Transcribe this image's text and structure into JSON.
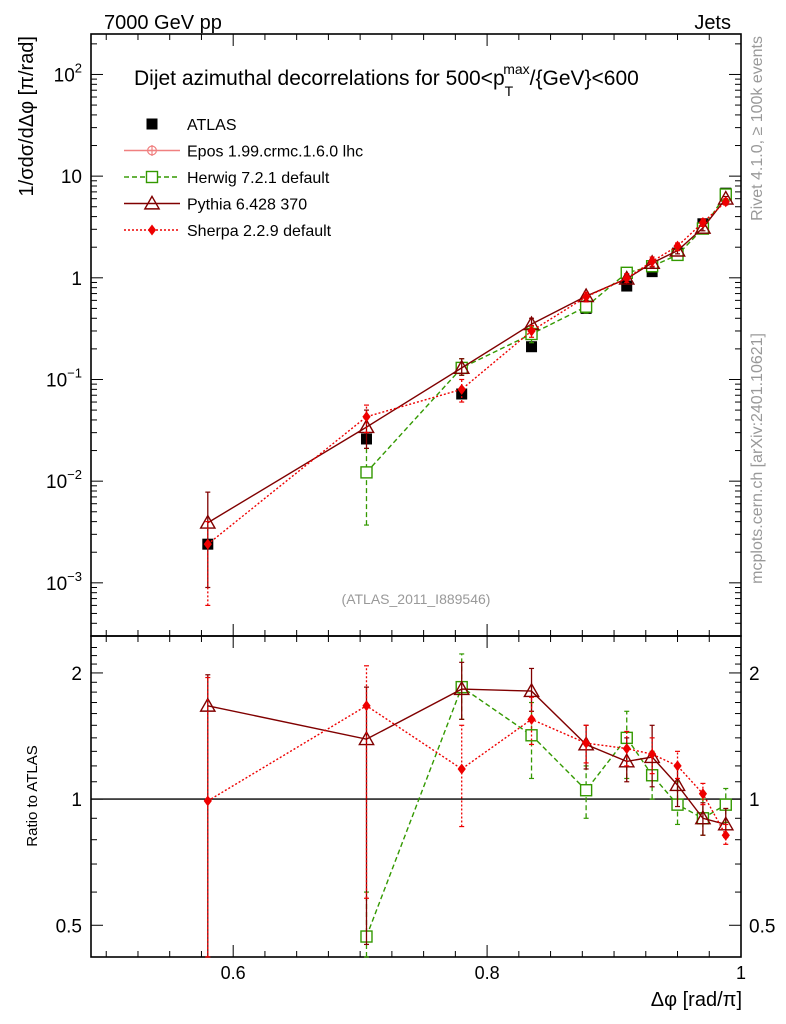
{
  "header": {
    "left": "7000 GeV pp",
    "right": "Jets"
  },
  "side_labels": {
    "rivet": "Rivet 4.1.0, ≥ 100k events",
    "mcplots": "mcplots.cern.ch [arXiv:2401.10621]"
  },
  "analysis_id": "(ATLAS_2011_I889546)",
  "chart_data": {
    "type": "scatter",
    "title": "Dijet azimuthal decorrelations for 500<p_T^max/{GeV}<600",
    "title_main": "Dijet azimuthal decorrelations for 500<p",
    "title_sub": "T",
    "title_sup": "max",
    "title_tail": "/{GeV}<600",
    "xlabel": "Δφ [rad/π]",
    "ylabel": "1/σdσ/dΔφ [π/rad]",
    "ratio_ylabel": "Ratio to ATLAS",
    "xlim": [
      0.488,
      1.0
    ],
    "ylim": [
      0.0003,
      250
    ],
    "ratio_ylim": [
      0.42,
      2.45
    ],
    "yscale": "log",
    "x_ticks": [
      0.6,
      0.8,
      1.0
    ],
    "x_tick_labels": [
      "0.6",
      "0.8",
      "1"
    ],
    "y_ticks": [
      0.001,
      0.01,
      0.1,
      1,
      10,
      100
    ],
    "y_tick_labels": [
      {
        "base": "10",
        "exp": "−3"
      },
      {
        "base": "10",
        "exp": "−2"
      },
      {
        "base": "10",
        "exp": "−1"
      },
      {
        "base": "1",
        "exp": ""
      },
      {
        "base": "10",
        "exp": ""
      },
      {
        "base": "10",
        "exp": "2"
      }
    ],
    "ratio_ticks": [
      0.5,
      1,
      2
    ],
    "ratio_tick_labels": [
      "0.5",
      "1",
      "2"
    ],
    "legend_position": "top-left",
    "x": [
      0.58,
      0.705,
      0.78,
      0.835,
      0.878,
      0.91,
      0.93,
      0.95,
      0.97,
      0.988
    ],
    "series": [
      {
        "name": "ATLAS",
        "color": "#000000",
        "marker": "square-filled",
        "line": "none",
        "values": [
          0.0024,
          0.026,
          0.072,
          0.21,
          0.5,
          0.83,
          1.15,
          1.75,
          3.4,
          6.8
        ]
      },
      {
        "name": "Epos 1.99.crmc.1.6.0 lhc",
        "color": "#f08080",
        "marker": "cross",
        "line": "solid",
        "values": [],
        "ratio": []
      },
      {
        "name": "Herwig 7.2.1 default",
        "color": "#339900",
        "marker": "square-open",
        "line": "dashed",
        "values": [
          null,
          0.0122,
          0.13,
          0.28,
          0.52,
          1.12,
          1.3,
          1.68,
          3.05,
          6.6
        ],
        "errors": [
          null,
          [
            0.0037,
            0.021
          ],
          [
            0.11,
            0.16
          ],
          [
            0.23,
            0.33
          ],
          [
            0.45,
            0.59
          ],
          [
            1.0,
            1.25
          ],
          [
            1.18,
            1.42
          ],
          [
            1.55,
            1.82
          ],
          [
            2.85,
            3.3
          ],
          [
            6.2,
            7.0
          ]
        ],
        "ratio": [
          null,
          0.47,
          1.85,
          1.42,
          1.05,
          1.4,
          1.14,
          0.97,
          0.9,
          0.97
        ],
        "ratio_errors": [
          null,
          [
            0.38,
            0.6
          ],
          [
            1.55,
            2.22
          ],
          [
            1.12,
            1.7
          ],
          [
            0.9,
            1.2
          ],
          [
            1.12,
            1.62
          ],
          [
            1.0,
            1.3
          ],
          [
            0.87,
            1.1
          ],
          [
            0.82,
            1.0
          ],
          [
            0.88,
            1.06
          ]
        ]
      },
      {
        "name": "Pythia 6.428 370",
        "color": "#800000",
        "marker": "triangle-open",
        "line": "solid",
        "values": [
          0.0039,
          0.034,
          0.13,
          0.35,
          0.66,
          0.98,
          1.4,
          1.85,
          3.1,
          6.0
        ],
        "errors": [
          [
            0.0009,
            0.0078
          ],
          [
            0.021,
            0.05
          ],
          [
            0.11,
            0.16
          ],
          [
            0.31,
            0.4
          ],
          [
            0.6,
            0.72
          ],
          [
            0.9,
            1.07
          ],
          [
            1.28,
            1.52
          ],
          [
            1.72,
            1.98
          ],
          [
            2.9,
            3.3
          ],
          [
            5.7,
            6.3
          ]
        ],
        "ratio": [
          1.67,
          1.39,
          1.83,
          1.81,
          1.35,
          1.23,
          1.26,
          1.08,
          0.9,
          0.87
        ],
        "ratio_errors": [
          [
            0.42,
            1.98
          ],
          [
            0.45,
            1.85
          ],
          [
            1.55,
            2.12
          ],
          [
            1.62,
            2.05
          ],
          [
            1.18,
            1.5
          ],
          [
            1.1,
            1.4
          ],
          [
            1.07,
            1.5
          ],
          [
            0.96,
            1.2
          ],
          [
            0.82,
            0.98
          ],
          [
            0.81,
            0.95
          ]
        ]
      },
      {
        "name": "Sherpa 2.2.9 default",
        "color": "#ee0000",
        "marker": "diamond-filled",
        "line": "dotted",
        "values": [
          0.0024,
          0.043,
          0.08,
          0.3,
          0.65,
          0.99,
          1.45,
          2.05,
          3.5,
          5.6
        ],
        "errors": [
          [
            0.0006,
            0.004
          ],
          [
            0.03,
            0.056
          ],
          [
            0.06,
            0.1
          ],
          [
            0.26,
            0.34
          ],
          [
            0.58,
            0.72
          ],
          [
            0.9,
            1.1
          ],
          [
            1.3,
            1.6
          ],
          [
            1.85,
            2.2
          ],
          [
            3.2,
            3.8
          ],
          [
            5.2,
            6.0
          ]
        ],
        "ratio": [
          0.99,
          1.67,
          1.18,
          1.55,
          1.36,
          1.32,
          1.28,
          1.2,
          1.03,
          0.82
        ],
        "ratio_errors": [
          [
            0.42,
            1.95
          ],
          [
            0.58,
            2.08
          ],
          [
            0.86,
            1.5
          ],
          [
            1.35,
            1.75
          ],
          [
            1.22,
            1.5
          ],
          [
            1.2,
            1.45
          ],
          [
            1.15,
            1.4
          ],
          [
            1.12,
            1.3
          ],
          [
            0.97,
            1.09
          ],
          [
            0.78,
            0.87
          ]
        ]
      }
    ]
  }
}
